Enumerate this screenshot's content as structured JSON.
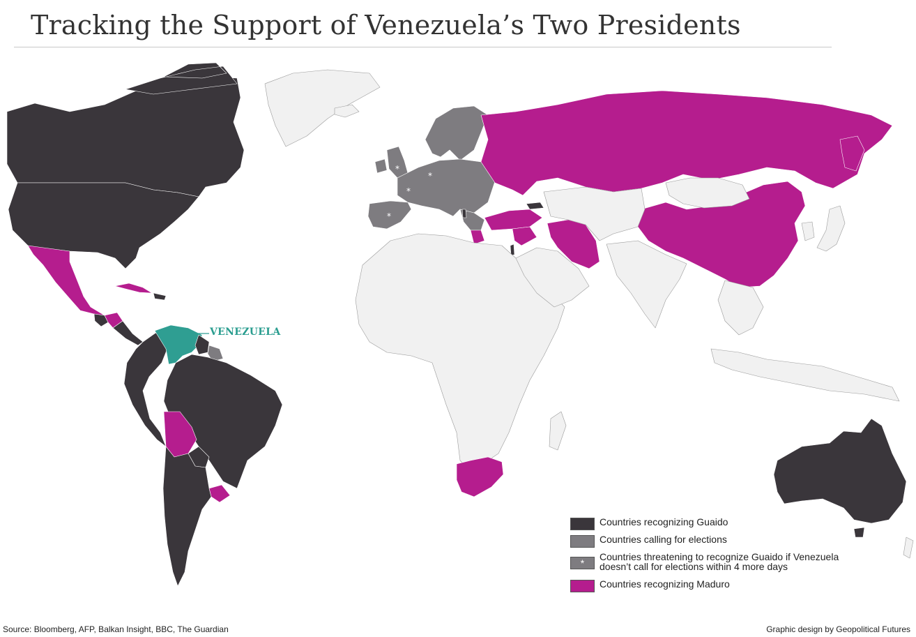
{
  "title": "Tracking the Support of Venezuela’s Two Presidents",
  "map_label": "VENEZUELA",
  "colors": {
    "guaido": "#3a363b",
    "elections": "#7e7c80",
    "threatening": "#7e7c80",
    "maduro": "#b51d8e",
    "venezuela": "#2f9e92",
    "neutral": "#f1f1f1",
    "borders": "#9a9a9a"
  },
  "legend": [
    {
      "key": "guaido",
      "label": "Countries recognizing Guaido",
      "star": ""
    },
    {
      "key": "elections",
      "label": "Countries calling for elections",
      "star": ""
    },
    {
      "key": "threatening",
      "label_line1": "Countries threatening to recognize Guaido if Venezuela",
      "label_line2": "doesn’t call for elections within 4 more days",
      "star": "*"
    },
    {
      "key": "maduro",
      "label": "Countries recognizing Maduro",
      "star": ""
    }
  ],
  "countries": {
    "guaido": [
      "Canada",
      "United States",
      "Guatemala",
      "Colombia",
      "Ecuador",
      "Peru",
      "Brazil",
      "Chile",
      "Argentina",
      "Paraguay",
      "Guyana",
      "Australia",
      "Albania",
      "Georgia",
      "Israel"
    ],
    "elections": [
      "Germany",
      "France",
      "Spain",
      "United Kingdom",
      "Portugal",
      "Netherlands",
      "Sweden",
      "Italy",
      "Austria",
      "Poland",
      "Suriname"
    ],
    "threatening": [
      "United Kingdom",
      "France",
      "Germany",
      "Spain"
    ],
    "maduro": [
      "Russia",
      "China",
      "Mexico",
      "Bolivia",
      "Uruguay",
      "Cuba",
      "Nicaragua",
      "Turkey",
      "Iran",
      "Syria",
      "South Africa",
      "Greece",
      "Cyprus"
    ]
  },
  "footer": {
    "source": "Source: Bloomberg, AFP, Balkan Insight, BBC, The Guardian",
    "credit": "Graphic design by Geopolitical Futures"
  }
}
